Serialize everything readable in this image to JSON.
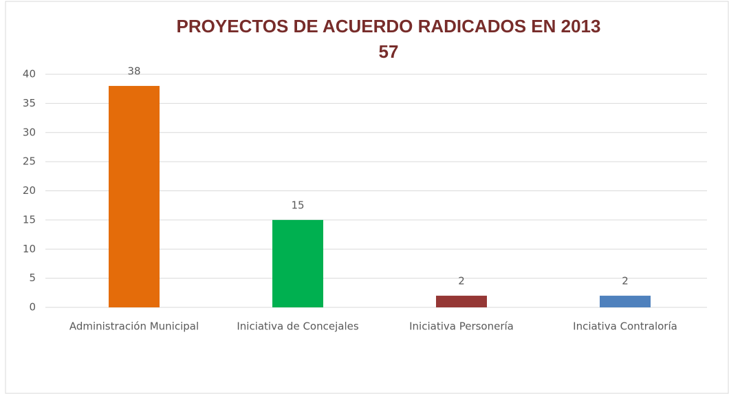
{
  "chart_data": {
    "type": "bar",
    "title": "PROYECTOS DE ACUERDO RADICADOS EN 2013",
    "subtitle": "57",
    "categories": [
      "Administración Municipal",
      "Iniciativa de Concejales",
      "Iniciativa Personería",
      "Inciativa Contraloría"
    ],
    "values": [
      38,
      15,
      2,
      2
    ],
    "colors": [
      "#e46c0a",
      "#00b050",
      "#953735",
      "#4f81bd"
    ],
    "ylim": [
      0,
      40
    ],
    "yticks": [
      0,
      5,
      10,
      15,
      20,
      25,
      30,
      35,
      40
    ],
    "grid": true
  }
}
